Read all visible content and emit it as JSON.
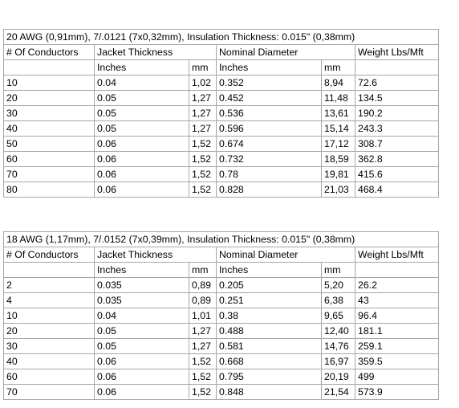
{
  "tables": [
    {
      "title": "20 AWG (0,91mm), 7/.0121 (7x0,32mm), Insulation Thickness: 0.015\" (0,38mm)",
      "header": {
        "conductors": "# Of Conductors",
        "jacket": "Jacket Thickness",
        "diameter": "Nominal Diameter",
        "weight": "Weight Lbs/Mft"
      },
      "units": {
        "jacket_in": "Inches",
        "diameter_mm": "mm",
        "diameter_in": "Inches",
        "diameter_mm2": "mm"
      },
      "rows": [
        [
          "10",
          "0.04",
          "1,02",
          "0.352",
          "8,94",
          "72.6"
        ],
        [
          "20",
          "0.05",
          "1,27",
          "0.452",
          "11,48",
          "134.5"
        ],
        [
          "30",
          "0.05",
          "1,27",
          "0.536",
          "13,61",
          "190.2"
        ],
        [
          "40",
          "0.05",
          "1,27",
          "0.596",
          "15,14",
          "243.3"
        ],
        [
          "50",
          "0.06",
          "1,52",
          "0.674",
          "17,12",
          "308.7"
        ],
        [
          "60",
          "0.06",
          "1,52",
          "0.732",
          "18,59",
          "362.8"
        ],
        [
          "70",
          "0.06",
          "1,52",
          "0.78",
          "19,81",
          "415.6"
        ],
        [
          "80",
          "0.06",
          "1,52",
          "0.828",
          "21,03",
          "468.4"
        ]
      ]
    },
    {
      "title": "18 AWG (1,17mm), 7/.0152 (7x0,39mm), Insulation Thickness: 0.015\" (0,38mm)",
      "header": {
        "conductors": "# Of Conductors",
        "jacket": "Jacket Thickness",
        "diameter": "Nominal Diameter",
        "weight": "Weight Lbs/Mft"
      },
      "units": {
        "jacket_in": "Inches",
        "diameter_mm": "mm",
        "diameter_in": "Inches",
        "diameter_mm2": "mm"
      },
      "rows": [
        [
          "2",
          "0.035",
          "0,89",
          "0.205",
          "5,20",
          "26.2"
        ],
        [
          "4",
          "0.035",
          "0,89",
          "0.251",
          "6,38",
          "43"
        ],
        [
          "10",
          "0.04",
          "1,01",
          "0.38",
          "9,65",
          "96.4"
        ],
        [
          "20",
          "0.05",
          "1,27",
          "0.488",
          "12,40",
          "181.1"
        ],
        [
          "30",
          "0.05",
          "1,27",
          "0.581",
          "14,76",
          "259.1"
        ],
        [
          "40",
          "0.06",
          "1,52",
          "0.668",
          "16,97",
          "359.5"
        ],
        [
          "60",
          "0.06",
          "1,52",
          "0.795",
          "20,19",
          "499"
        ],
        [
          "70",
          "0.06",
          "1,52",
          "0.848",
          "21,54",
          "573.9"
        ]
      ]
    }
  ]
}
